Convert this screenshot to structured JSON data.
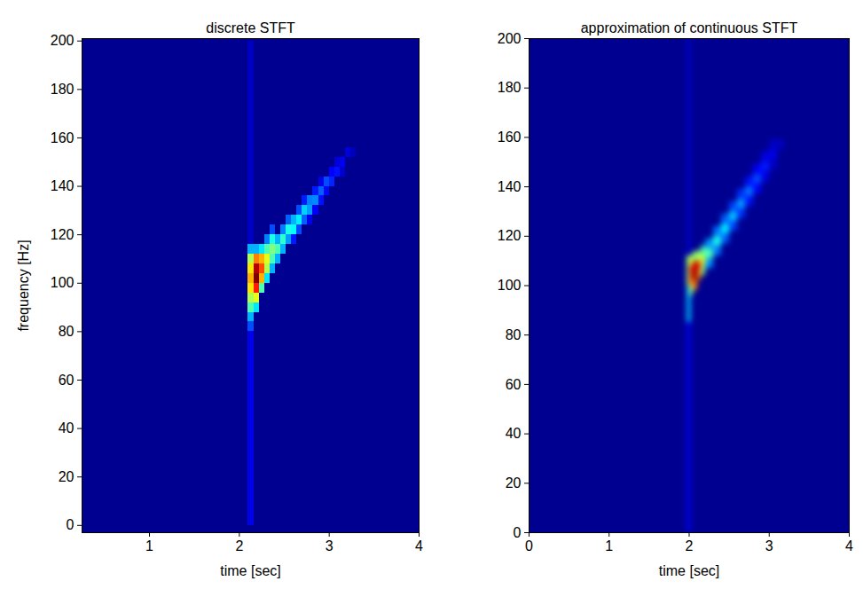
{
  "chart_data": [
    {
      "type": "heatmap",
      "title": "discrete STFT",
      "xlabel": "time [sec]",
      "ylabel": "frequency [Hz]",
      "xlim": [
        0.25,
        4
      ],
      "ylim": [
        -3,
        201
      ],
      "xticks": [
        1,
        2,
        3,
        4
      ],
      "yticks": [
        0,
        20,
        40,
        60,
        80,
        100,
        120,
        140,
        160,
        180,
        200
      ],
      "clim": [
        0,
        1
      ],
      "cells": [
        [
          2.1,
          2.16,
          0,
          80,
          0.1
        ],
        [
          2.1,
          2.16,
          80,
          84,
          0.2
        ],
        [
          2.1,
          2.16,
          84,
          88,
          0.3
        ],
        [
          2.1,
          2.16,
          88,
          92,
          0.45
        ],
        [
          2.1,
          2.16,
          92,
          96,
          0.55
        ],
        [
          2.1,
          2.16,
          96,
          100,
          0.65
        ],
        [
          2.1,
          2.16,
          100,
          104,
          0.7
        ],
        [
          2.1,
          2.16,
          104,
          108,
          0.65
        ],
        [
          2.1,
          2.16,
          108,
          112,
          0.55
        ],
        [
          2.1,
          2.16,
          112,
          116,
          0.3
        ],
        [
          2.1,
          2.16,
          116,
          200,
          0.06
        ],
        [
          2.16,
          2.22,
          88,
          92,
          0.35
        ],
        [
          2.16,
          2.22,
          92,
          96,
          0.6
        ],
        [
          2.16,
          2.22,
          96,
          100,
          0.85
        ],
        [
          2.16,
          2.22,
          100,
          104,
          1.0
        ],
        [
          2.16,
          2.22,
          104,
          108,
          0.95
        ],
        [
          2.16,
          2.22,
          108,
          112,
          0.75
        ],
        [
          2.16,
          2.22,
          112,
          116,
          0.3
        ],
        [
          2.22,
          2.28,
          96,
          100,
          0.45
        ],
        [
          2.22,
          2.28,
          100,
          104,
          0.7
        ],
        [
          2.22,
          2.28,
          104,
          108,
          0.8
        ],
        [
          2.22,
          2.28,
          108,
          112,
          0.7
        ],
        [
          2.22,
          2.28,
          112,
          116,
          0.35
        ],
        [
          2.28,
          2.34,
          100,
          104,
          0.35
        ],
        [
          2.28,
          2.34,
          104,
          108,
          0.55
        ],
        [
          2.28,
          2.34,
          108,
          112,
          0.6
        ],
        [
          2.28,
          2.34,
          112,
          116,
          0.45
        ],
        [
          2.28,
          2.34,
          116,
          120,
          0.25
        ],
        [
          2.34,
          2.4,
          104,
          108,
          0.3
        ],
        [
          2.34,
          2.4,
          108,
          112,
          0.45
        ],
        [
          2.34,
          2.4,
          112,
          116,
          0.5
        ],
        [
          2.34,
          2.4,
          116,
          120,
          0.4
        ],
        [
          2.34,
          2.4,
          120,
          124,
          0.2
        ],
        [
          2.4,
          2.46,
          108,
          112,
          0.3
        ],
        [
          2.4,
          2.46,
          112,
          116,
          0.45
        ],
        [
          2.4,
          2.46,
          116,
          120,
          0.3
        ],
        [
          2.46,
          2.52,
          112,
          116,
          0.3
        ],
        [
          2.46,
          2.52,
          116,
          120,
          0.42
        ],
        [
          2.46,
          2.52,
          120,
          124,
          0.25
        ],
        [
          2.52,
          2.58,
          116,
          120,
          0.28
        ],
        [
          2.52,
          2.58,
          120,
          124,
          0.4
        ],
        [
          2.52,
          2.58,
          124,
          128,
          0.22
        ],
        [
          2.58,
          2.64,
          116,
          120,
          0.15
        ],
        [
          2.58,
          2.64,
          120,
          124,
          0.38
        ],
        [
          2.58,
          2.64,
          124,
          128,
          0.3
        ],
        [
          2.64,
          2.7,
          120,
          124,
          0.2
        ],
        [
          2.64,
          2.7,
          124,
          128,
          0.36
        ],
        [
          2.64,
          2.7,
          128,
          132,
          0.2
        ],
        [
          2.7,
          2.76,
          124,
          128,
          0.22
        ],
        [
          2.7,
          2.76,
          128,
          132,
          0.33
        ],
        [
          2.7,
          2.76,
          132,
          136,
          0.15
        ],
        [
          2.76,
          2.82,
          124,
          128,
          0.1
        ],
        [
          2.76,
          2.82,
          128,
          132,
          0.28
        ],
        [
          2.76,
          2.82,
          132,
          136,
          0.25
        ],
        [
          2.82,
          2.88,
          128,
          132,
          0.12
        ],
        [
          2.82,
          2.88,
          132,
          136,
          0.26
        ],
        [
          2.82,
          2.88,
          136,
          140,
          0.15
        ],
        [
          2.88,
          2.94,
          132,
          136,
          0.14
        ],
        [
          2.88,
          2.94,
          136,
          140,
          0.22
        ],
        [
          2.88,
          2.94,
          140,
          144,
          0.1
        ],
        [
          2.94,
          3.0,
          136,
          140,
          0.13
        ],
        [
          2.94,
          3.0,
          140,
          144,
          0.2
        ],
        [
          3.0,
          3.06,
          140,
          144,
          0.16
        ],
        [
          3.0,
          3.06,
          144,
          148,
          0.12
        ],
        [
          3.06,
          3.12,
          144,
          148,
          0.14
        ],
        [
          3.06,
          3.12,
          148,
          152,
          0.08
        ],
        [
          3.12,
          3.18,
          144,
          148,
          0.07
        ],
        [
          3.12,
          3.18,
          148,
          152,
          0.11
        ],
        [
          3.18,
          3.24,
          152,
          156,
          0.08
        ],
        [
          3.24,
          3.3,
          152,
          156,
          0.05
        ]
      ]
    },
    {
      "type": "heatmap",
      "title": "approximation of continuous STFT",
      "xlabel": "time [sec]",
      "xlim": [
        0,
        4
      ],
      "ylim": [
        0,
        200
      ],
      "xticks": [
        0,
        1,
        2,
        3,
        4
      ],
      "yticks": [
        0,
        20,
        40,
        60,
        80,
        100,
        120,
        140,
        160,
        180,
        200
      ],
      "clim": [
        0,
        1
      ],
      "cells": [
        [
          1.97,
          2.03,
          0,
          85,
          0.1
        ],
        [
          1.97,
          2.03,
          85,
          100,
          0.3
        ],
        [
          1.97,
          2.03,
          100,
          112,
          0.5
        ],
        [
          1.97,
          2.03,
          112,
          200,
          0.06
        ],
        [
          2.0,
          2.05,
          96,
          100,
          0.5
        ],
        [
          2.0,
          2.05,
          100,
          104,
          0.8
        ],
        [
          2.0,
          2.05,
          104,
          108,
          0.85
        ],
        [
          2.0,
          2.05,
          108,
          112,
          0.6
        ],
        [
          2.05,
          2.1,
          98,
          102,
          0.75
        ],
        [
          2.05,
          2.1,
          102,
          106,
          1.0
        ],
        [
          2.05,
          2.1,
          106,
          110,
          0.95
        ],
        [
          2.05,
          2.1,
          110,
          114,
          0.5
        ],
        [
          2.1,
          2.15,
          102,
          106,
          0.75
        ],
        [
          2.1,
          2.15,
          106,
          110,
          0.85
        ],
        [
          2.1,
          2.15,
          110,
          114,
          0.55
        ],
        [
          2.15,
          2.2,
          104,
          108,
          0.5
        ],
        [
          2.15,
          2.2,
          108,
          112,
          0.6
        ],
        [
          2.15,
          2.2,
          112,
          116,
          0.45
        ],
        [
          2.2,
          2.3,
          107,
          111,
          0.27
        ],
        [
          2.2,
          2.3,
          111,
          115,
          0.45
        ],
        [
          2.2,
          2.3,
          115,
          119,
          0.27
        ],
        [
          2.3,
          2.4,
          112,
          116,
          0.24
        ],
        [
          2.3,
          2.4,
          116,
          120,
          0.4
        ],
        [
          2.3,
          2.4,
          120,
          124,
          0.24
        ],
        [
          2.4,
          2.5,
          117,
          121,
          0.22
        ],
        [
          2.4,
          2.5,
          121,
          125,
          0.36
        ],
        [
          2.4,
          2.5,
          125,
          129,
          0.22
        ],
        [
          2.5,
          2.6,
          122,
          126,
          0.19
        ],
        [
          2.5,
          2.6,
          126,
          130,
          0.32
        ],
        [
          2.5,
          2.6,
          130,
          134,
          0.19
        ],
        [
          2.6,
          2.7,
          127,
          131,
          0.17
        ],
        [
          2.6,
          2.7,
          131,
          135,
          0.28
        ],
        [
          2.6,
          2.7,
          135,
          139,
          0.17
        ],
        [
          2.7,
          2.8,
          132,
          136,
          0.14
        ],
        [
          2.7,
          2.8,
          136,
          140,
          0.24
        ],
        [
          2.7,
          2.8,
          140,
          144,
          0.14
        ],
        [
          2.8,
          2.9,
          137,
          141,
          0.12
        ],
        [
          2.8,
          2.9,
          141,
          145,
          0.2
        ],
        [
          2.8,
          2.9,
          145,
          149,
          0.12
        ],
        [
          2.9,
          3.0,
          142,
          146,
          0.09
        ],
        [
          2.9,
          3.0,
          146,
          150,
          0.15
        ],
        [
          2.9,
          3.0,
          150,
          154,
          0.09
        ],
        [
          3.0,
          3.1,
          147,
          151,
          0.06
        ],
        [
          3.0,
          3.1,
          151,
          155,
          0.1
        ],
        [
          3.0,
          3.1,
          155,
          159,
          0.06
        ],
        [
          3.1,
          3.2,
          155,
          159,
          0.05
        ]
      ]
    }
  ]
}
